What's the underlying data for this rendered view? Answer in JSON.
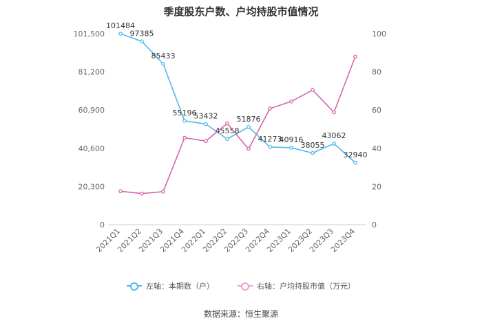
{
  "chart_data": {
    "type": "line",
    "title": "季度股东户数、户均持股市值情况",
    "categories": [
      "2021Q1",
      "2021Q2",
      "2021Q3",
      "2021Q4",
      "2022Q1",
      "2022Q2",
      "2022Q3",
      "2022Q4",
      "2023Q1",
      "2023Q2",
      "2023Q3",
      "2023Q4"
    ],
    "series": [
      {
        "name": "左轴：本期数（户）",
        "axis": "left",
        "color": "#4db8ec",
        "values": [
          101484,
          97385,
          85433,
          55196,
          53432,
          45558,
          51876,
          41273,
          40916,
          38055,
          43062,
          32940
        ],
        "labels": [
          "101484",
          "97385",
          "85433",
          "55196",
          "53432",
          "45558",
          "51876",
          "41273",
          "40916",
          "38055",
          "43062",
          "32940"
        ]
      },
      {
        "name": "右轴：户均持股市值（万元）",
        "axis": "right",
        "color": "#d565a8",
        "values": [
          17.5,
          16.3,
          17.3,
          45.5,
          43.8,
          53.0,
          39.6,
          60.8,
          64.5,
          70.5,
          58.8,
          88.0
        ]
      }
    ],
    "left_axis": {
      "ylim": [
        0,
        101500
      ],
      "ticks": [
        0,
        20300,
        40600,
        60900,
        81200,
        101500
      ],
      "tick_labels": [
        "0",
        "20,300",
        "40,600",
        "60,900",
        "81,200",
        "101,500"
      ]
    },
    "right_axis": {
      "ylim": [
        0,
        100
      ],
      "ticks": [
        0,
        20,
        40,
        60,
        80,
        100
      ],
      "tick_labels": [
        "0",
        "20",
        "40",
        "60",
        "80",
        "100"
      ]
    },
    "grid": false,
    "legend": "bottom-center"
  },
  "source_text": "数据来源：恒生聚源"
}
